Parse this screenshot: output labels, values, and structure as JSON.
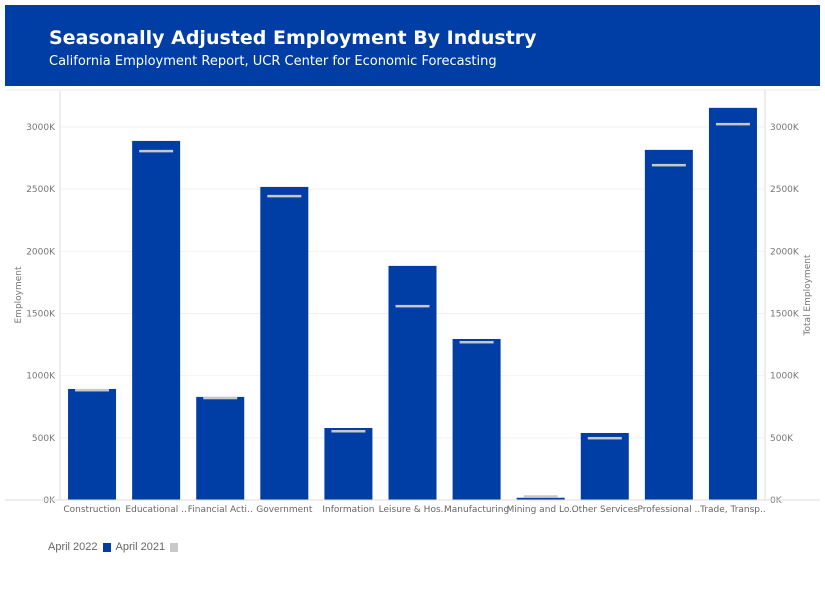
{
  "header": {
    "title": "Seasonally Adjusted Employment By Industry",
    "subtitle": "California Employment Report, UCR Center for Economic Forecasting"
  },
  "colors": {
    "header_bg": "#003DA5",
    "bar": "#003DA5",
    "marker": "#C8C8C8"
  },
  "chart_data": {
    "type": "bar",
    "ylabel": "Employment",
    "y2label": "Total Employment",
    "ylim": [
      0,
      3250
    ],
    "yticks": [
      "0K",
      "500K",
      "1000K",
      "1500K",
      "2000K",
      "2500K",
      "3000K"
    ],
    "ytick_values": [
      0,
      500,
      1000,
      1500,
      2000,
      2500,
      3000
    ],
    "grid": true,
    "legend_placement": "bottom-left",
    "categories": [
      "Construction",
      "Educational ..",
      "Financial Acti..",
      "Government",
      "Information",
      "Leisure & Hos..",
      "Manufacturing",
      "Mining and Lo..",
      "Other Services",
      "Professional ..",
      "Trade, Transp.."
    ],
    "series": [
      {
        "name": "April 2022",
        "mark": "bar",
        "values": [
          893,
          2888,
          829,
          2518,
          579,
          1883,
          1295,
          18,
          539,
          2816,
          3154
        ]
      },
      {
        "name": "April 2021",
        "mark": "marker",
        "values": [
          885,
          2808,
          822,
          2446,
          555,
          1561,
          1271,
          30,
          499,
          2695,
          3025
        ]
      }
    ]
  }
}
